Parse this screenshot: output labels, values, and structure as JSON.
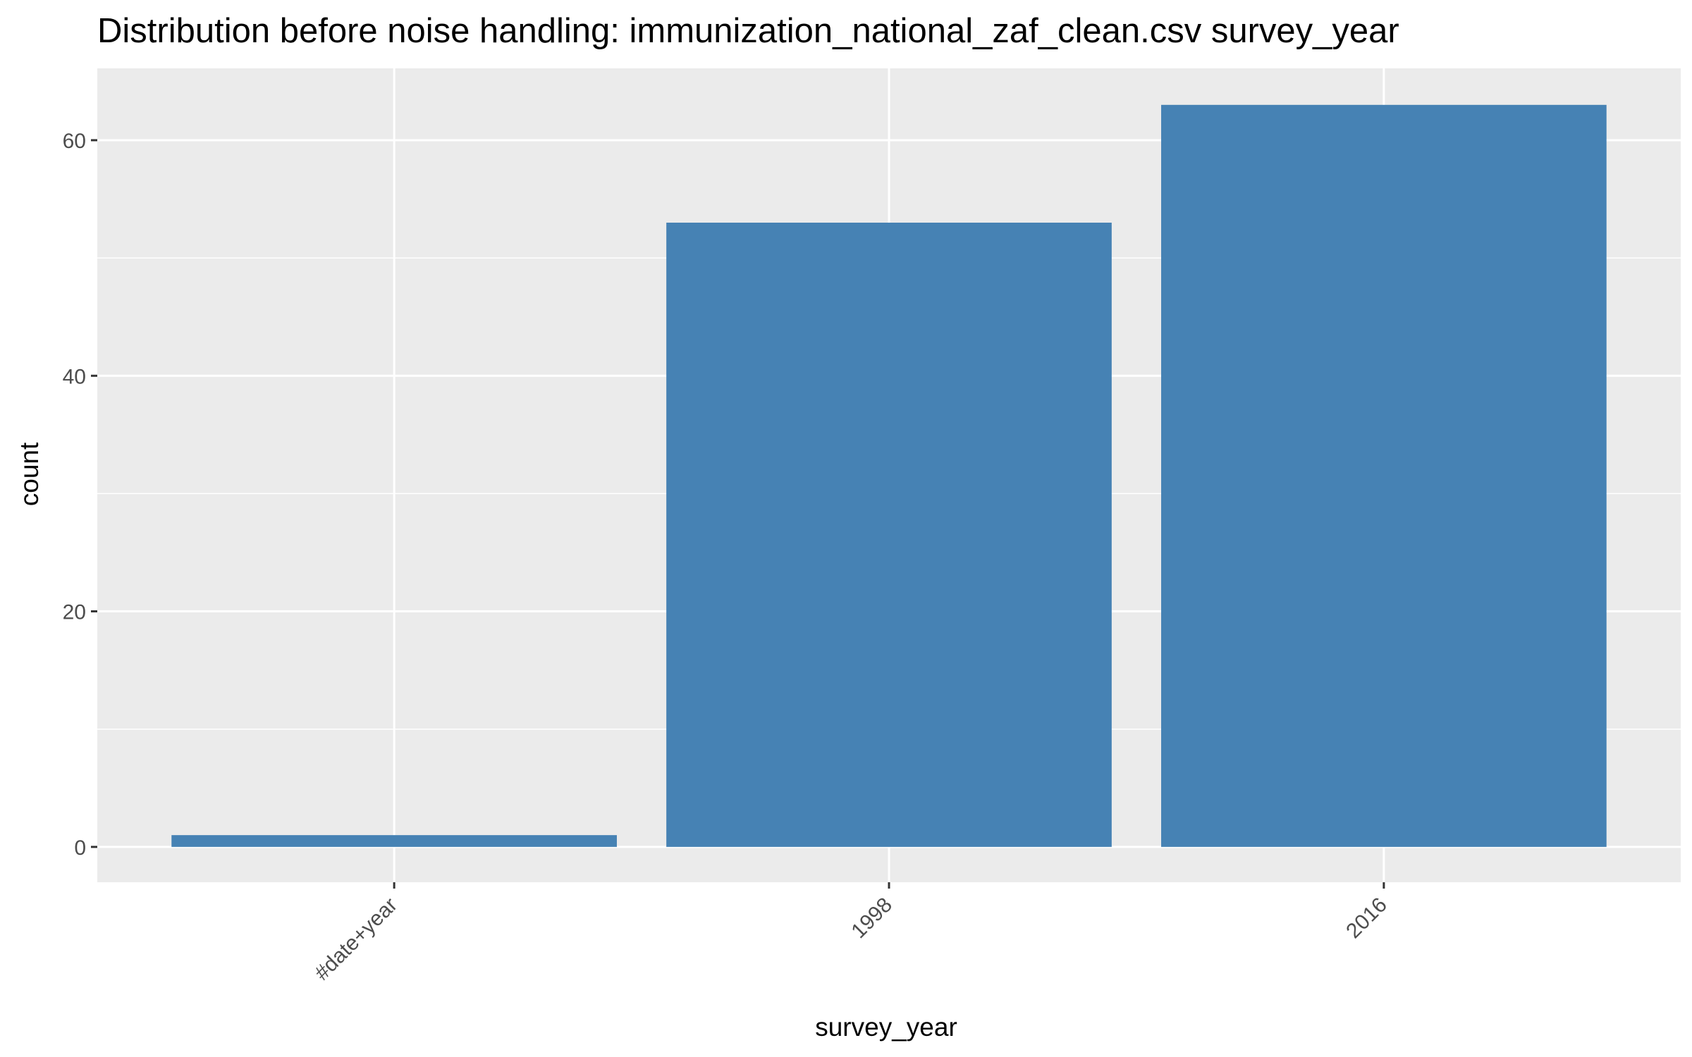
{
  "chart_data": {
    "type": "bar",
    "title": "Distribution before noise handling: immunization_national_zaf_clean.csv survey_year",
    "xlabel": "survey_year",
    "ylabel": "count",
    "categories": [
      "#date+year",
      "1998",
      "2016"
    ],
    "values": [
      1,
      53,
      63
    ],
    "ylim": [
      -3,
      66.1
    ],
    "y_major_ticks": [
      0,
      20,
      40,
      60
    ],
    "y_minor_ticks": [
      10,
      30,
      50
    ],
    "x_tick_label_rotation_deg": -45,
    "grid": true,
    "legend": "none",
    "colors": {
      "bar": "#4682B4",
      "panel_background": "#EBEBEB",
      "grid_line": "#FFFFFF",
      "tick_label": "#4D4D4D",
      "tick_mark": "#333333",
      "text": "#000000"
    }
  }
}
